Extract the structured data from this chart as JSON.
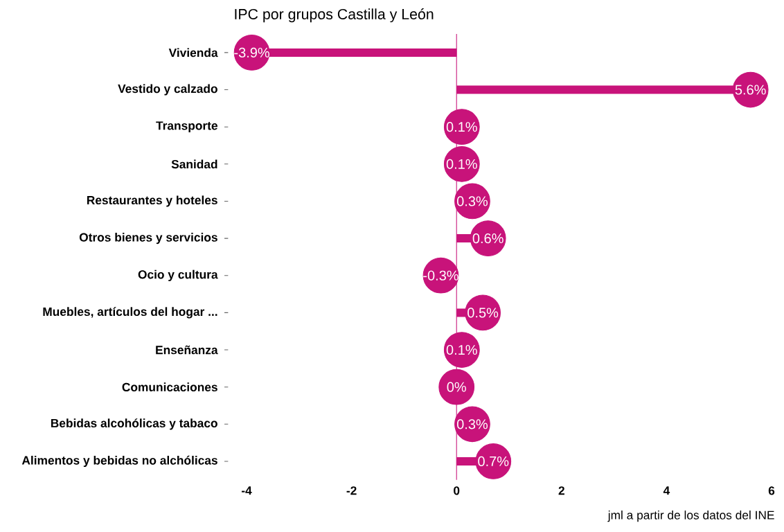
{
  "chart_data": {
    "type": "lollipop",
    "orientation": "horizontal",
    "title": "IPC por grupos Castilla y León",
    "categories": [
      "Vivienda",
      "Vestido y calzado",
      "Transporte",
      "Sanidad",
      "Restaurantes y hoteles",
      "Otros bienes y servicios",
      "Ocio y cultura",
      "Muebles, artículos del hogar ...",
      "Enseñanza",
      "Comunicaciones",
      "Bebidas alcohólicas y tabaco",
      "Alimentos y bebidas no alchólicas"
    ],
    "values": [
      -3.9,
      5.6,
      0.1,
      0.1,
      0.3,
      0.6,
      -0.3,
      0.5,
      0.1,
      0,
      0.3,
      0.7
    ],
    "value_labels": [
      "-3.9%",
      "5.6%",
      "0.1%",
      "0.1%",
      "0.3%",
      "0.6%",
      "-0.3%",
      "0.5%",
      "0.1%",
      "0%",
      "0.3%",
      "0.7%"
    ],
    "color": "#c8137a",
    "xlim": [
      -4,
      6
    ],
    "xticks": [
      -4,
      -2,
      0,
      2,
      4,
      6
    ],
    "ref_lines": [
      {
        "axis": "x",
        "value": 0,
        "color": "#c8137a"
      }
    ],
    "grid": false,
    "marker": "circle",
    "annotations": [
      "jml a partir de los datos del INE"
    ]
  }
}
